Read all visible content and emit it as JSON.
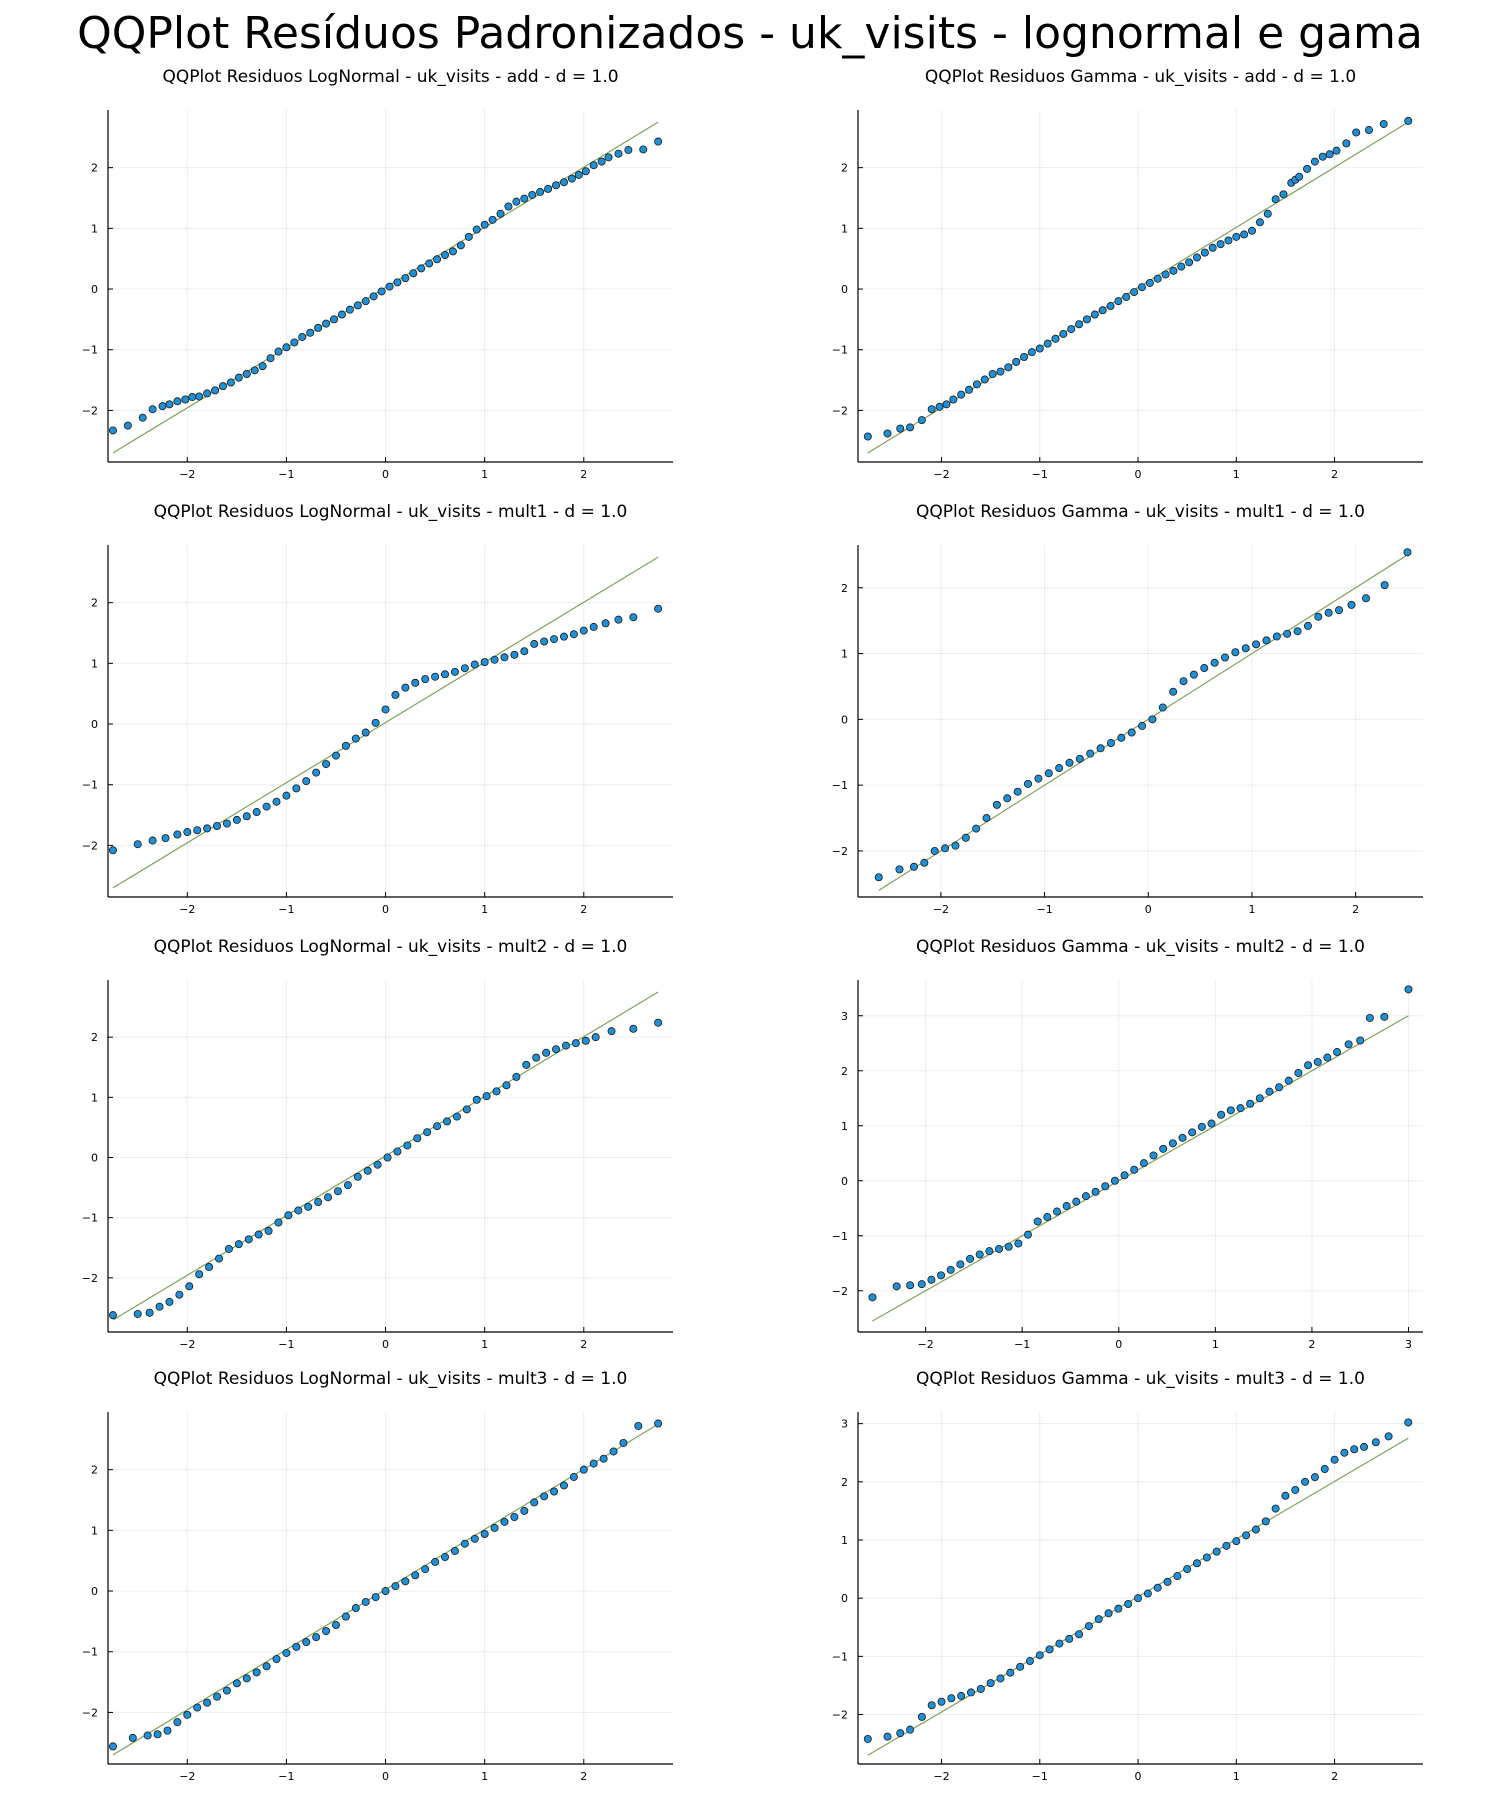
{
  "title": "QQPlot Resíduos Padronizados - uk_visits - lognormal e gama",
  "colors": {
    "points": "#1f8fd6",
    "reference_line": "#7ea35a"
  },
  "chart_data": [
    {
      "type": "scatter",
      "title": "QQPlot Residuos LogNormal - uk_visits - add - d = 1.0",
      "xlabel": "",
      "ylabel": "",
      "xlim": [
        -2.8,
        2.9
      ],
      "ylim": [
        -2.85,
        2.95
      ],
      "xticks": [
        -2,
        -1,
        0,
        1,
        2
      ],
      "yticks": [
        -2,
        -1,
        0,
        1,
        2
      ],
      "grid": true,
      "legend": "none",
      "reference_line": {
        "x": [
          -2.75,
          2.75
        ],
        "y": [
          -2.7,
          2.75
        ]
      },
      "quantiles": [
        -2.75,
        -2.6,
        -2.45,
        -2.35,
        -2.25,
        -2.18,
        -2.1,
        -2.02,
        -1.95,
        -1.88,
        -1.8,
        -1.72,
        -1.64,
        -1.56,
        -1.48,
        -1.4,
        -1.32,
        -1.24,
        -1.16,
        -1.08,
        -1.0,
        -0.92,
        -0.84,
        -0.76,
        -0.68,
        -0.6,
        -0.52,
        -0.44,
        -0.36,
        -0.28,
        -0.2,
        -0.12,
        -0.04,
        0.04,
        0.12,
        0.2,
        0.28,
        0.36,
        0.44,
        0.52,
        0.6,
        0.68,
        0.76,
        0.84,
        0.92,
        1.0,
        1.08,
        1.16,
        1.24,
        1.32,
        1.4,
        1.48,
        1.56,
        1.64,
        1.72,
        1.8,
        1.88,
        1.95,
        2.02,
        2.1,
        2.18,
        2.25,
        2.35,
        2.45,
        2.6,
        2.75
      ],
      "residuals": [
        -2.33,
        -2.25,
        -2.12,
        -1.98,
        -1.93,
        -1.9,
        -1.85,
        -1.82,
        -1.78,
        -1.77,
        -1.72,
        -1.67,
        -1.6,
        -1.54,
        -1.46,
        -1.4,
        -1.34,
        -1.27,
        -1.14,
        -1.03,
        -0.96,
        -0.88,
        -0.79,
        -0.72,
        -0.64,
        -0.57,
        -0.5,
        -0.42,
        -0.34,
        -0.27,
        -0.2,
        -0.12,
        -0.04,
        0.04,
        0.11,
        0.18,
        0.26,
        0.34,
        0.42,
        0.49,
        0.56,
        0.62,
        0.72,
        0.86,
        0.98,
        1.06,
        1.14,
        1.24,
        1.36,
        1.44,
        1.49,
        1.55,
        1.6,
        1.65,
        1.71,
        1.76,
        1.82,
        1.88,
        1.94,
        2.04,
        2.1,
        2.17,
        2.23,
        2.29,
        2.3,
        2.43
      ]
    },
    {
      "type": "scatter",
      "title": "QQPlot Residuos Gamma - uk_visits - add - d = 1.0",
      "xlabel": "",
      "ylabel": "",
      "xlim": [
        -2.85,
        2.9
      ],
      "ylim": [
        -2.85,
        2.95
      ],
      "xticks": [
        -2,
        -1,
        0,
        1,
        2
      ],
      "yticks": [
        -2,
        -1,
        0,
        1,
        2
      ],
      "grid": true,
      "legend": "none",
      "reference_line": {
        "x": [
          -2.75,
          2.75
        ],
        "y": [
          -2.7,
          2.75
        ]
      },
      "quantiles": [
        -2.75,
        -2.55,
        -2.42,
        -2.32,
        -2.2,
        -2.1,
        -2.02,
        -1.95,
        -1.88,
        -1.8,
        -1.72,
        -1.64,
        -1.56,
        -1.48,
        -1.4,
        -1.32,
        -1.24,
        -1.16,
        -1.08,
        -1.0,
        -0.92,
        -0.84,
        -0.76,
        -0.68,
        -0.6,
        -0.52,
        -0.44,
        -0.36,
        -0.28,
        -0.2,
        -0.12,
        -0.04,
        0.04,
        0.12,
        0.2,
        0.28,
        0.36,
        0.44,
        0.52,
        0.6,
        0.68,
        0.76,
        0.84,
        0.92,
        1.0,
        1.08,
        1.16,
        1.24,
        1.32,
        1.4,
        1.48,
        1.56,
        1.6,
        1.64,
        1.72,
        1.8,
        1.88,
        1.95,
        2.02,
        2.12,
        2.22,
        2.35,
        2.5,
        2.75
      ],
      "residuals": [
        -2.43,
        -2.38,
        -2.3,
        -2.28,
        -2.16,
        -1.98,
        -1.94,
        -1.9,
        -1.82,
        -1.74,
        -1.66,
        -1.57,
        -1.49,
        -1.4,
        -1.36,
        -1.29,
        -1.2,
        -1.12,
        -1.04,
        -0.98,
        -0.9,
        -0.82,
        -0.74,
        -0.66,
        -0.58,
        -0.5,
        -0.42,
        -0.35,
        -0.28,
        -0.2,
        -0.13,
        -0.05,
        0.03,
        0.1,
        0.17,
        0.24,
        0.3,
        0.37,
        0.44,
        0.52,
        0.6,
        0.68,
        0.74,
        0.8,
        0.86,
        0.9,
        0.96,
        1.1,
        1.24,
        1.48,
        1.56,
        1.75,
        1.8,
        1.85,
        1.98,
        2.1,
        2.18,
        2.22,
        2.28,
        2.4,
        2.58,
        2.62,
        2.72,
        2.77
      ]
    },
    {
      "type": "scatter",
      "title": "QQPlot Residuos LogNormal - uk_visits - mult1 - d = 1.0",
      "xlabel": "",
      "ylabel": "",
      "xlim": [
        -2.8,
        2.9
      ],
      "ylim": [
        -2.85,
        2.95
      ],
      "xticks": [
        -2,
        -1,
        0,
        1,
        2
      ],
      "yticks": [
        -2,
        -1,
        0,
        1,
        2
      ],
      "grid": true,
      "legend": "none",
      "reference_line": {
        "x": [
          -2.75,
          2.75
        ],
        "y": [
          -2.7,
          2.75
        ]
      },
      "quantiles": [
        -2.75,
        -2.5,
        -2.35,
        -2.22,
        -2.1,
        -2.0,
        -1.9,
        -1.8,
        -1.7,
        -1.6,
        -1.5,
        -1.4,
        -1.3,
        -1.2,
        -1.1,
        -1.0,
        -0.9,
        -0.8,
        -0.7,
        -0.6,
        -0.5,
        -0.4,
        -0.3,
        -0.2,
        -0.1,
        0.0,
        0.1,
        0.2,
        0.3,
        0.4,
        0.5,
        0.6,
        0.7,
        0.8,
        0.9,
        1.0,
        1.1,
        1.2,
        1.3,
        1.4,
        1.5,
        1.6,
        1.7,
        1.8,
        1.9,
        2.0,
        2.1,
        2.22,
        2.35,
        2.5,
        2.75
      ],
      "residuals": [
        -2.08,
        -1.98,
        -1.92,
        -1.88,
        -1.82,
        -1.78,
        -1.75,
        -1.72,
        -1.68,
        -1.64,
        -1.58,
        -1.52,
        -1.45,
        -1.36,
        -1.28,
        -1.18,
        -1.06,
        -0.94,
        -0.8,
        -0.66,
        -0.52,
        -0.36,
        -0.24,
        -0.14,
        0.02,
        0.24,
        0.48,
        0.6,
        0.68,
        0.74,
        0.78,
        0.82,
        0.86,
        0.92,
        0.98,
        1.02,
        1.06,
        1.1,
        1.14,
        1.2,
        1.32,
        1.36,
        1.4,
        1.44,
        1.48,
        1.54,
        1.6,
        1.66,
        1.72,
        1.76,
        1.9
      ]
    },
    {
      "type": "scatter",
      "title": "QQPlot Residuos Gamma - uk_visits - mult1 - d = 1.0",
      "xlabel": "",
      "ylabel": "",
      "xlim": [
        -2.8,
        2.65
      ],
      "ylim": [
        -2.7,
        2.65
      ],
      "xticks": [
        -2,
        -1,
        0,
        1,
        2
      ],
      "yticks": [
        -2,
        -1,
        0,
        1,
        2
      ],
      "grid": true,
      "legend": "none",
      "reference_line": {
        "x": [
          -2.6,
          2.5
        ],
        "y": [
          -2.6,
          2.5
        ]
      },
      "quantiles": [
        -2.6,
        -2.4,
        -2.26,
        -2.16,
        -2.06,
        -1.96,
        -1.86,
        -1.76,
        -1.66,
        -1.56,
        -1.46,
        -1.36,
        -1.26,
        -1.16,
        -1.06,
        -0.96,
        -0.86,
        -0.76,
        -0.66,
        -0.56,
        -0.46,
        -0.36,
        -0.26,
        -0.16,
        -0.06,
        0.04,
        0.14,
        0.24,
        0.34,
        0.44,
        0.54,
        0.64,
        0.74,
        0.84,
        0.94,
        1.04,
        1.14,
        1.24,
        1.34,
        1.44,
        1.54,
        1.64,
        1.74,
        1.84,
        1.96,
        2.1,
        2.28,
        2.5
      ],
      "residuals": [
        -2.4,
        -2.28,
        -2.24,
        -2.18,
        -2.0,
        -1.96,
        -1.92,
        -1.8,
        -1.66,
        -1.5,
        -1.3,
        -1.2,
        -1.1,
        -0.98,
        -0.9,
        -0.82,
        -0.74,
        -0.66,
        -0.6,
        -0.52,
        -0.44,
        -0.36,
        -0.28,
        -0.2,
        -0.1,
        0.0,
        0.18,
        0.42,
        0.58,
        0.68,
        0.78,
        0.86,
        0.94,
        1.02,
        1.08,
        1.14,
        1.2,
        1.26,
        1.3,
        1.34,
        1.42,
        1.56,
        1.62,
        1.66,
        1.74,
        1.84,
        2.04,
        2.54
      ]
    },
    {
      "type": "scatter",
      "title": "QQPlot Residuos LogNormal - uk_visits - mult2 - d = 1.0",
      "xlabel": "",
      "ylabel": "",
      "xlim": [
        -2.8,
        2.9
      ],
      "ylim": [
        -2.9,
        2.95
      ],
      "xticks": [
        -2,
        -1,
        0,
        1,
        2
      ],
      "yticks": [
        -2,
        -1,
        0,
        1,
        2
      ],
      "grid": true,
      "legend": "none",
      "reference_line": {
        "x": [
          -2.75,
          2.75
        ],
        "y": [
          -2.7,
          2.75
        ]
      },
      "quantiles": [
        -2.75,
        -2.5,
        -2.38,
        -2.28,
        -2.18,
        -2.08,
        -1.98,
        -1.88,
        -1.78,
        -1.68,
        -1.58,
        -1.48,
        -1.38,
        -1.28,
        -1.18,
        -1.08,
        -0.98,
        -0.88,
        -0.78,
        -0.68,
        -0.58,
        -0.48,
        -0.38,
        -0.28,
        -0.18,
        -0.08,
        0.02,
        0.12,
        0.22,
        0.32,
        0.42,
        0.52,
        0.62,
        0.72,
        0.82,
        0.92,
        1.02,
        1.12,
        1.22,
        1.32,
        1.42,
        1.52,
        1.62,
        1.72,
        1.82,
        1.92,
        2.02,
        2.12,
        2.28,
        2.5,
        2.75
      ],
      "residuals": [
        -2.62,
        -2.6,
        -2.58,
        -2.48,
        -2.4,
        -2.28,
        -2.14,
        -1.94,
        -1.82,
        -1.68,
        -1.52,
        -1.44,
        -1.36,
        -1.28,
        -1.22,
        -1.08,
        -0.96,
        -0.88,
        -0.82,
        -0.74,
        -0.66,
        -0.56,
        -0.46,
        -0.32,
        -0.22,
        -0.12,
        0.0,
        0.1,
        0.2,
        0.32,
        0.42,
        0.52,
        0.6,
        0.68,
        0.8,
        0.96,
        1.02,
        1.1,
        1.2,
        1.34,
        1.54,
        1.66,
        1.74,
        1.8,
        1.86,
        1.9,
        1.94,
        2.0,
        2.1,
        2.14,
        2.24
      ]
    },
    {
      "type": "scatter",
      "title": "QQPlot Residuos Gamma - uk_visits - mult2 - d = 1.0",
      "xlabel": "",
      "ylabel": "",
      "xlim": [
        -2.7,
        3.15
      ],
      "ylim": [
        -2.75,
        3.65
      ],
      "xticks": [
        -2,
        -1,
        0,
        1,
        2,
        3
      ],
      "yticks": [
        -2,
        -1,
        0,
        1,
        2,
        3
      ],
      "grid": true,
      "legend": "none",
      "reference_line": {
        "x": [
          -2.55,
          3.0
        ],
        "y": [
          -2.55,
          3.0
        ]
      },
      "quantiles": [
        -2.55,
        -2.3,
        -2.16,
        -2.04,
        -1.94,
        -1.84,
        -1.74,
        -1.64,
        -1.54,
        -1.44,
        -1.34,
        -1.24,
        -1.14,
        -1.04,
        -0.94,
        -0.84,
        -0.74,
        -0.64,
        -0.54,
        -0.44,
        -0.34,
        -0.24,
        -0.14,
        -0.04,
        0.06,
        0.16,
        0.26,
        0.36,
        0.46,
        0.56,
        0.66,
        0.76,
        0.86,
        0.96,
        1.06,
        1.16,
        1.26,
        1.36,
        1.46,
        1.56,
        1.66,
        1.76,
        1.86,
        1.96,
        2.06,
        2.16,
        2.26,
        2.38,
        2.5,
        2.6,
        2.75,
        3.0
      ],
      "residuals": [
        -2.12,
        -1.92,
        -1.9,
        -1.88,
        -1.8,
        -1.72,
        -1.62,
        -1.52,
        -1.42,
        -1.34,
        -1.28,
        -1.24,
        -1.2,
        -1.14,
        -0.98,
        -0.74,
        -0.66,
        -0.56,
        -0.46,
        -0.38,
        -0.28,
        -0.2,
        -0.1,
        0.0,
        0.1,
        0.2,
        0.32,
        0.46,
        0.58,
        0.68,
        0.78,
        0.88,
        0.98,
        1.04,
        1.2,
        1.28,
        1.32,
        1.4,
        1.5,
        1.62,
        1.7,
        1.82,
        1.96,
        2.1,
        2.16,
        2.24,
        2.34,
        2.48,
        2.55,
        2.96,
        2.98,
        3.48
      ]
    },
    {
      "type": "scatter",
      "title": "QQPlot Residuos LogNormal - uk_visits - mult3 - d = 1.0",
      "xlabel": "",
      "ylabel": "",
      "xlim": [
        -2.8,
        2.9
      ],
      "ylim": [
        -2.85,
        2.95
      ],
      "xticks": [
        -2,
        -1,
        0,
        1,
        2
      ],
      "yticks": [
        -2,
        -1,
        0,
        1,
        2
      ],
      "grid": true,
      "legend": "none",
      "reference_line": {
        "x": [
          -2.75,
          2.75
        ],
        "y": [
          -2.7,
          2.75
        ]
      },
      "quantiles": [
        -2.75,
        -2.55,
        -2.4,
        -2.3,
        -2.2,
        -2.1,
        -2.0,
        -1.9,
        -1.8,
        -1.7,
        -1.6,
        -1.5,
        -1.4,
        -1.3,
        -1.2,
        -1.1,
        -1.0,
        -0.9,
        -0.8,
        -0.7,
        -0.6,
        -0.5,
        -0.4,
        -0.3,
        -0.2,
        -0.1,
        0.0,
        0.1,
        0.2,
        0.3,
        0.4,
        0.5,
        0.6,
        0.7,
        0.8,
        0.9,
        1.0,
        1.1,
        1.2,
        1.3,
        1.4,
        1.5,
        1.6,
        1.7,
        1.8,
        1.9,
        2.0,
        2.1,
        2.2,
        2.3,
        2.4,
        2.55,
        2.75
      ],
      "residuals": [
        -2.56,
        -2.42,
        -2.38,
        -2.36,
        -2.3,
        -2.16,
        -2.04,
        -1.92,
        -1.84,
        -1.74,
        -1.64,
        -1.52,
        -1.44,
        -1.34,
        -1.24,
        -1.12,
        -1.02,
        -0.92,
        -0.84,
        -0.76,
        -0.66,
        -0.56,
        -0.42,
        -0.28,
        -0.18,
        -0.1,
        0.0,
        0.08,
        0.16,
        0.26,
        0.36,
        0.48,
        0.56,
        0.66,
        0.78,
        0.86,
        0.94,
        1.04,
        1.14,
        1.22,
        1.32,
        1.46,
        1.56,
        1.64,
        1.74,
        1.88,
        2.0,
        2.1,
        2.18,
        2.3,
        2.44,
        2.72,
        2.76
      ]
    },
    {
      "type": "scatter",
      "title": "QQPlot Residuos Gamma - uk_visits - mult3 - d = 1.0",
      "xlabel": "",
      "ylabel": "",
      "xlim": [
        -2.85,
        2.9
      ],
      "ylim": [
        -2.85,
        3.2
      ],
      "xticks": [
        -2,
        -1,
        0,
        1,
        2
      ],
      "yticks": [
        -2,
        -1,
        0,
        1,
        2,
        3
      ],
      "grid": true,
      "legend": "none",
      "reference_line": {
        "x": [
          -2.75,
          2.75
        ],
        "y": [
          -2.7,
          2.75
        ]
      },
      "quantiles": [
        -2.75,
        -2.55,
        -2.42,
        -2.32,
        -2.2,
        -2.1,
        -2.0,
        -1.9,
        -1.8,
        -1.7,
        -1.6,
        -1.5,
        -1.4,
        -1.3,
        -1.2,
        -1.1,
        -1.0,
        -0.9,
        -0.8,
        -0.7,
        -0.6,
        -0.5,
        -0.4,
        -0.3,
        -0.2,
        -0.1,
        0.0,
        0.1,
        0.2,
        0.3,
        0.4,
        0.5,
        0.6,
        0.7,
        0.8,
        0.9,
        1.0,
        1.1,
        1.2,
        1.3,
        1.4,
        1.5,
        1.6,
        1.7,
        1.8,
        1.9,
        2.0,
        2.1,
        2.2,
        2.3,
        2.42,
        2.55,
        2.75
      ],
      "residuals": [
        -2.42,
        -2.38,
        -2.32,
        -2.26,
        -2.04,
        -1.84,
        -1.78,
        -1.72,
        -1.68,
        -1.62,
        -1.56,
        -1.46,
        -1.38,
        -1.28,
        -1.18,
        -1.08,
        -0.98,
        -0.88,
        -0.78,
        -0.7,
        -0.62,
        -0.48,
        -0.36,
        -0.26,
        -0.18,
        -0.1,
        0.0,
        0.08,
        0.18,
        0.28,
        0.38,
        0.5,
        0.6,
        0.7,
        0.8,
        0.9,
        0.98,
        1.08,
        1.18,
        1.32,
        1.54,
        1.76,
        1.86,
        2.0,
        2.08,
        2.22,
        2.38,
        2.5,
        2.56,
        2.6,
        2.68,
        2.78,
        3.02
      ]
    }
  ]
}
